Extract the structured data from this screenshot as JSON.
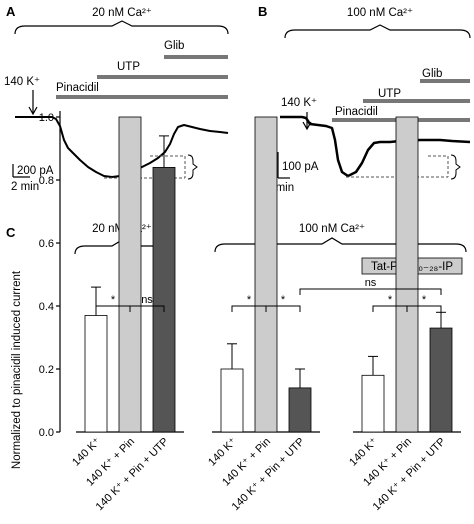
{
  "panels": {
    "A": {
      "letter": "A",
      "condition": "20 nM Ca²⁺",
      "stim": "140 K⁺",
      "bars": [
        "Pinacidil",
        "UTP",
        "Glib"
      ],
      "scale_current": "200 pA",
      "scale_time": "2 min"
    },
    "B": {
      "letter": "B",
      "condition": "100 nM Ca²⁺",
      "stim": "140 K⁺",
      "bars": [
        "Pinacidil",
        "UTP",
        "Glib"
      ],
      "scale_current": "100 pA",
      "scale_time": "1 min"
    },
    "C": {
      "letter": "C",
      "group_labels": [
        "20 nM Ca²⁺",
        "100 nM Ca²⁺"
      ],
      "inhibitor": "Tat-PKC₂₀₋₂₈-IP",
      "sig_star": "*",
      "sig_ns": "ns"
    }
  },
  "chart_data": {
    "type": "bar",
    "ylabel": "Normalized to pinacidil induced current",
    "ylim": [
      0,
      1.1
    ],
    "yticks": [
      0.0,
      0.2,
      0.4,
      0.6,
      0.8,
      1.0
    ],
    "groups": [
      {
        "condition": "20 nM Ca²⁺",
        "categories": [
          "140 K⁺",
          "140 K⁺ + Pin",
          "140 K⁺ + Pin + UTP"
        ],
        "values": [
          0.37,
          1.0,
          0.84
        ],
        "errors": [
          0.09,
          0.0,
          0.1
        ]
      },
      {
        "condition": "100 nM Ca²⁺",
        "categories": [
          "140 K⁺",
          "140 K⁺ + Pin",
          "140 K⁺ + Pin + UTP"
        ],
        "values": [
          0.2,
          1.0,
          0.14
        ],
        "errors": [
          0.08,
          0.0,
          0.06
        ]
      },
      {
        "condition": "100 nM Ca²⁺ + Tat-PKC₂₀₋₂₈-IP",
        "categories": [
          "140 K⁺",
          "140 K⁺ + Pin",
          "140 K⁺ + Pin + UTP"
        ],
        "values": [
          0.18,
          1.0,
          0.33
        ],
        "errors": [
          0.06,
          0.0,
          0.05
        ]
      }
    ],
    "bar_colors": [
      "#ffffff",
      "#cccccc",
      "#555555"
    ]
  }
}
